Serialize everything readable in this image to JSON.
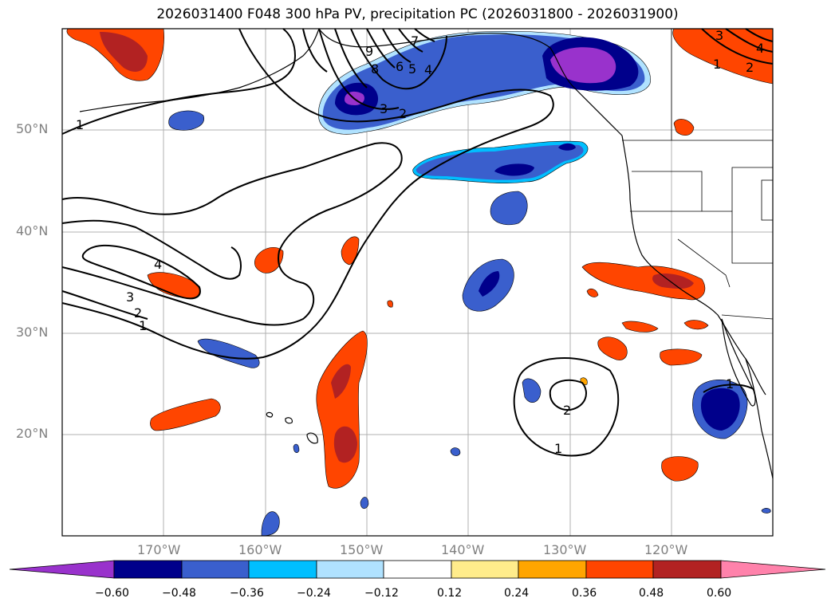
{
  "title": "2026031400 F048 300 hPa PV, precipitation PC (2026031800 - 2026031900)",
  "lat_labels": [
    "50°N",
    "40°N",
    "30°N",
    "20°N"
  ],
  "lon_labels": [
    "170°W",
    "160°W",
    "150°W",
    "140°W",
    "130°W",
    "120°W"
  ],
  "colorbar": {
    "ticks": [
      "−0.60",
      "−0.48",
      "−0.36",
      "−0.24",
      "−0.12",
      "0.12",
      "0.24",
      "0.36",
      "0.48",
      "0.60"
    ],
    "colors": [
      "#9932cc",
      "#00008b",
      "#3a5fcd",
      "#00bfff",
      "#b0e2ff",
      "#ffffff",
      "#ffec8b",
      "#ffa500",
      "#ff4500",
      "#b22222",
      "#ff82ab"
    ]
  },
  "contour_labels": [
    "1",
    "2",
    "3",
    "4",
    "5",
    "6",
    "7",
    "8",
    "9",
    "1",
    "2",
    "3",
    "4",
    "1",
    "2",
    "1",
    "2",
    "3",
    "4",
    "1"
  ],
  "colors": {
    "pv_contour": "#000000",
    "grid": "#b0b0b0",
    "coast": "#000000"
  }
}
